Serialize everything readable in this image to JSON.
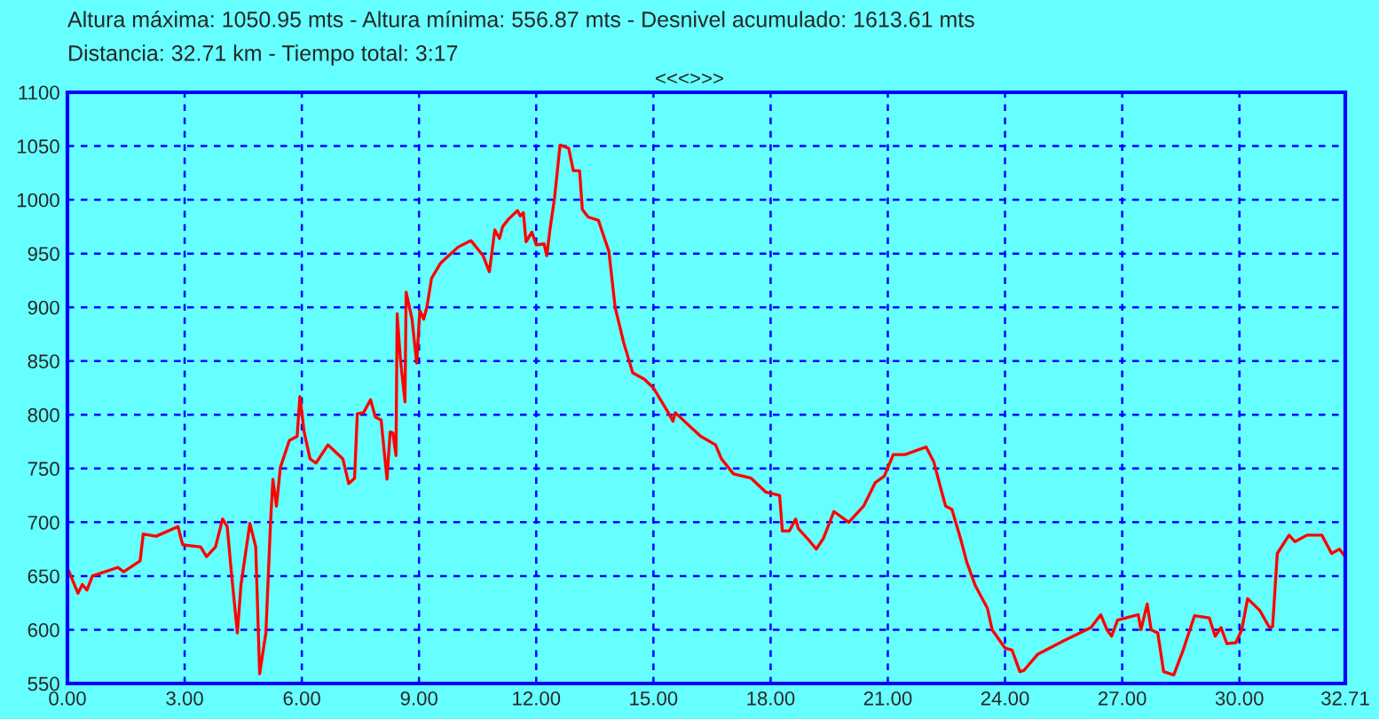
{
  "chart_data": {
    "type": "line",
    "title": "Altura máxima: 1050.95 mts - Altura mínima: 556.87 mts - Desnivel acumulado: 1613.61 mts",
    "subtitle": "Distancia: 32.71 km - Tiempo total: 3:17",
    "annotations": [
      "<<<>>>"
    ],
    "series": [
      {
        "color": "#ff0000",
        "x": [
          0.03,
          0.27,
          0.38,
          0.5,
          0.64,
          1.29,
          1.44,
          1.86,
          1.94,
          2.27,
          2.83,
          2.95,
          3.41,
          3.56,
          3.79,
          3.97,
          4.09,
          4.2,
          4.35,
          4.44,
          4.67,
          4.82,
          4.92,
          5.08,
          5.2,
          5.26,
          5.35,
          5.45,
          5.68,
          5.88,
          5.95,
          6.06,
          6.21,
          6.36,
          6.67,
          7.05,
          7.2,
          7.35,
          7.42,
          7.58,
          7.76,
          7.88,
          8.03,
          8.18,
          8.26,
          8.33,
          8.41,
          8.44,
          8.52,
          8.64,
          8.67,
          8.82,
          8.94,
          9.02,
          9.12,
          9.2,
          9.32,
          9.55,
          10.0,
          10.33,
          10.64,
          10.8,
          10.94,
          11.06,
          11.14,
          11.29,
          11.52,
          11.59,
          11.67,
          11.74,
          11.89,
          12.0,
          12.2,
          12.27,
          12.35,
          12.47,
          12.61,
          12.83,
          12.95,
          13.11,
          13.18,
          13.33,
          13.59,
          13.86,
          14.02,
          14.24,
          14.47,
          14.77,
          15.0,
          15.38,
          15.5,
          15.56,
          15.91,
          16.21,
          16.59,
          16.74,
          17.05,
          17.5,
          17.88,
          18.23,
          18.3,
          18.48,
          18.64,
          18.71,
          18.94,
          19.17,
          19.35,
          19.62,
          20.0,
          20.38,
          20.68,
          20.91,
          21.14,
          21.44,
          21.98,
          22.18,
          22.33,
          22.48,
          22.64,
          22.86,
          23.02,
          23.24,
          23.55,
          23.67,
          24.0,
          24.18,
          24.38,
          24.48,
          24.83,
          25.52,
          26.2,
          26.45,
          26.61,
          26.73,
          26.88,
          27.41,
          27.48,
          27.64,
          27.74,
          27.91,
          28.06,
          28.32,
          28.55,
          28.85,
          29.23,
          29.38,
          29.53,
          29.68,
          29.91,
          30.06,
          30.21,
          30.52,
          30.77,
          30.85,
          30.97,
          31.27,
          31.42,
          31.73,
          32.11,
          32.36,
          32.56,
          32.71
        ],
        "values": [
          655,
          634,
          642,
          637,
          650,
          658,
          654,
          664,
          689,
          687,
          696,
          679,
          677,
          668,
          677,
          703,
          696,
          652,
          597,
          641,
          699,
          677,
          559,
          597,
          701,
          740,
          715,
          751,
          776,
          780,
          817,
          784,
          759,
          755,
          772,
          759,
          736,
          741,
          801,
          802,
          814,
          798,
          795,
          740,
          784,
          783,
          762,
          894,
          853,
          812,
          914,
          889,
          848,
          897,
          889,
          900,
          927,
          941,
          956,
          962,
          948,
          933,
          972,
          964,
          975,
          982,
          990,
          985,
          988,
          961,
          970,
          958,
          959,
          948,
          972,
          1002,
          1051,
          1048,
          1027,
          1027,
          991,
          984,
          981,
          952,
          900,
          867,
          839,
          833,
          825,
          802,
          794,
          802,
          790,
          780,
          772,
          759,
          745,
          741,
          728,
          725,
          692,
          692,
          703,
          694,
          685,
          675,
          685,
          710,
          700,
          715,
          737,
          743,
          763,
          763,
          770,
          756,
          735,
          715,
          712,
          685,
          663,
          641,
          620,
          600,
          583,
          581,
          561,
          562,
          577,
          590,
          602,
          614,
          600,
          594,
          609,
          614,
          600,
          624,
          600,
          597,
          561,
          558,
          580,
          613,
          611,
          594,
          602,
          587,
          588,
          600,
          629,
          618,
          602,
          603,
          671,
          688,
          682,
          688,
          688,
          671,
          675,
          668
        ]
      }
    ],
    "xlim": [
      0,
      32.71
    ],
    "xticks": [
      {
        "value": 0,
        "label": "0.00"
      },
      {
        "value": 3,
        "label": "3.00"
      },
      {
        "value": 6,
        "label": "6.00"
      },
      {
        "value": 9,
        "label": "9.00"
      },
      {
        "value": 12,
        "label": "12.00"
      },
      {
        "value": 15,
        "label": "15.00"
      },
      {
        "value": 18,
        "label": "18.00"
      },
      {
        "value": 21,
        "label": "21.00"
      },
      {
        "value": 24,
        "label": "24.00"
      },
      {
        "value": 27,
        "label": "27.00"
      },
      {
        "value": 30,
        "label": "30.00"
      },
      {
        "value": 32.71,
        "label": "32.71"
      }
    ],
    "ylim": [
      550,
      1100
    ],
    "yticks": [
      550,
      600,
      650,
      700,
      750,
      800,
      850,
      900,
      950,
      1000,
      1050,
      1100
    ],
    "grid": true
  }
}
